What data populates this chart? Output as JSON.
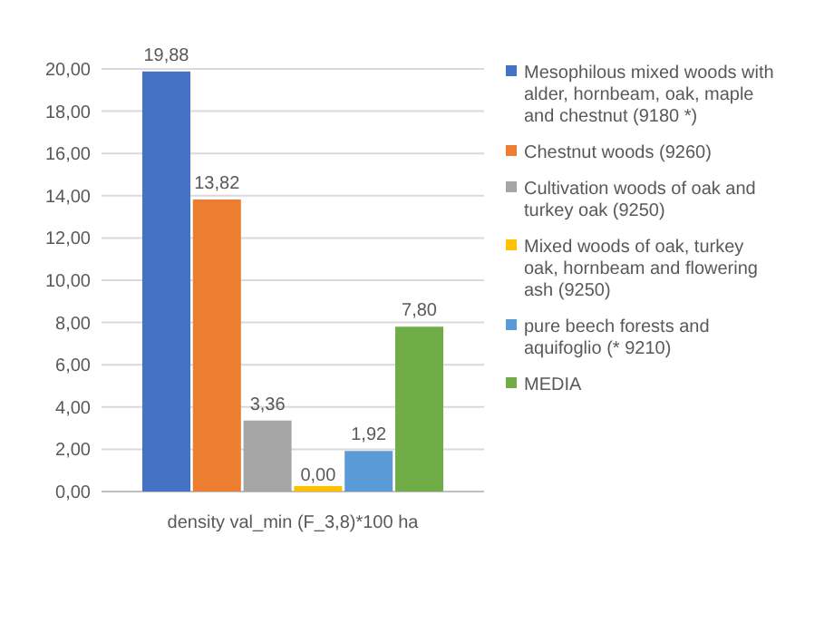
{
  "chart_data": {
    "type": "bar",
    "categories": [
      "density val_min (F_3,8)*100 ha"
    ],
    "series": [
      {
        "name": "Mesophilous mixed woods with alder, hornbeam, oak, maple and chestnut (9180 *)",
        "color": "#4472c4",
        "values": [
          19.88
        ],
        "value_labels": [
          "19,88"
        ]
      },
      {
        "name": "Chestnut woods (9260)",
        "color": "#ed7d31",
        "values": [
          13.82
        ],
        "value_labels": [
          "13,82"
        ]
      },
      {
        "name": "Cultivation woods of oak and turkey oak (9250)",
        "color": "#a5a5a5",
        "values": [
          3.36
        ],
        "value_labels": [
          "3,36"
        ]
      },
      {
        "name": "Mixed woods of oak, turkey oak, hornbeam and flowering ash (9250)",
        "color": "#ffc000",
        "values": [
          0.0
        ],
        "value_labels": [
          "0,00"
        ]
      },
      {
        "name": "pure beech forests and aquifoglio (* 9210)",
        "color": "#5b9bd5",
        "values": [
          1.92
        ],
        "value_labels": [
          "1,92"
        ]
      },
      {
        "name": "MEDIA",
        "color": "#70ad47",
        "values": [
          7.8
        ],
        "value_labels": [
          "7,80"
        ]
      }
    ],
    "ylim": [
      0,
      20
    ],
    "yticks": [
      {
        "value": 0,
        "label": "0,00"
      },
      {
        "value": 2,
        "label": "2,00"
      },
      {
        "value": 4,
        "label": "4,00"
      },
      {
        "value": 6,
        "label": "6,00"
      },
      {
        "value": 8,
        "label": "8,00"
      },
      {
        "value": 10,
        "label": "10,00"
      },
      {
        "value": 12,
        "label": "12,00"
      },
      {
        "value": 14,
        "label": "14,00"
      },
      {
        "value": 16,
        "label": "16,00"
      },
      {
        "value": 18,
        "label": "18,00"
      },
      {
        "value": 20,
        "label": "20,00"
      }
    ],
    "grid": "y",
    "legend": "right"
  }
}
